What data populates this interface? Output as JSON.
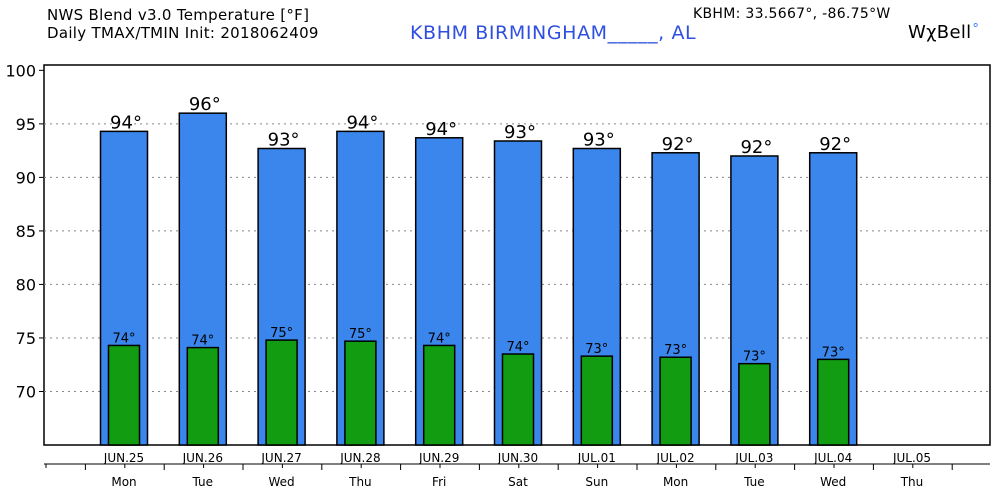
{
  "header": {
    "title_line1": "NWS Blend v3.0 Temperature [°F]",
    "title_line2": "Daily TMAX/TMIN Init: 2018062409",
    "station": "KBHM BIRMINGHAM_____, AL",
    "coords": "KBHM: 33.5667°, -86.75°W",
    "brand": "WχBell",
    "brand_mark": "°"
  },
  "colors": {
    "tmax_bar": "#3a86ec",
    "tmin_bar": "#119c11",
    "station_text": "#2f4fe0",
    "gridline": "#888888"
  },
  "chart_data": {
    "type": "bar",
    "grid": true,
    "ylim": [
      65,
      100.5
    ],
    "yticks": [
      70,
      75,
      80,
      85,
      90,
      95,
      100
    ],
    "categories": [
      "JUN.25",
      "JUN.26",
      "JUN.27",
      "JUN.28",
      "JUN.29",
      "JUN.30",
      "JUL.01",
      "JUL.02",
      "JUL.03",
      "JUL.04",
      "JUL.05"
    ],
    "weekdays": [
      "Mon",
      "Tue",
      "Wed",
      "Thu",
      "Fri",
      "Sat",
      "Sun",
      "Mon",
      "Tue",
      "Wed",
      "Thu"
    ],
    "series": [
      {
        "values": [
          94.3,
          96.0,
          92.7,
          94.3,
          93.7,
          93.4,
          92.7,
          92.3,
          92.0,
          92.3,
          null
        ],
        "labels": [
          "94°",
          "96°",
          "93°",
          "94°",
          "94°",
          "93°",
          "93°",
          "92°",
          "92°",
          "92°",
          ""
        ]
      },
      {
        "values": [
          74.3,
          74.1,
          74.8,
          74.7,
          74.3,
          73.5,
          73.3,
          73.2,
          72.6,
          73.0,
          null
        ],
        "labels": [
          "74°",
          "74°",
          "75°",
          "75°",
          "74°",
          "74°",
          "73°",
          "73°",
          "73°",
          "73°",
          ""
        ]
      }
    ]
  }
}
